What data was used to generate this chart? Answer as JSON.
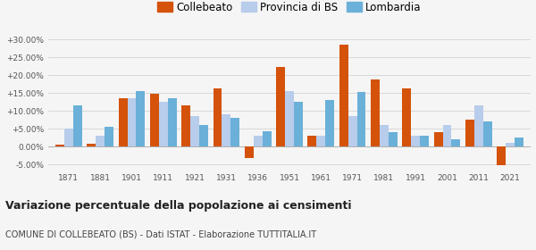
{
  "years": [
    1871,
    1881,
    1901,
    1911,
    1921,
    1931,
    1936,
    1951,
    1961,
    1971,
    1981,
    1991,
    2001,
    2011,
    2021
  ],
  "collebeato": [
    0.5,
    0.8,
    13.5,
    14.8,
    11.7,
    16.4,
    -3.2,
    22.3,
    3.0,
    28.5,
    18.8,
    16.3,
    4.2,
    7.5,
    -5.2
  ],
  "provincia_bs": [
    5.0,
    3.0,
    13.7,
    12.5,
    8.5,
    9.0,
    3.2,
    15.5,
    3.0,
    8.5,
    6.0,
    3.0,
    6.0,
    11.5,
    1.2
  ],
  "lombardia": [
    11.5,
    5.7,
    15.7,
    13.5,
    6.0,
    8.0,
    4.3,
    12.5,
    13.0,
    15.3,
    4.0,
    3.0,
    2.0,
    7.2,
    2.5
  ],
  "collebeato_color": "#d4520a",
  "provincia_color": "#b8cceb",
  "lombardia_color": "#6ab0d8",
  "title": "Variazione percentuale della popolazione ai censimenti",
  "subtitle": "COMUNE DI COLLEBEATO (BS) - Dati ISTAT - Elaborazione TUTTITALIA.IT",
  "ylim": [
    -6.5,
    32
  ],
  "yticks": [
    -5,
    0,
    5,
    10,
    15,
    20,
    25,
    30
  ],
  "ytick_labels": [
    "-5.00%",
    "0.00%",
    "+5.00%",
    "+10.00%",
    "+15.00%",
    "+20.00%",
    "+25.00%",
    "+30.00%"
  ],
  "bar_width": 0.28,
  "bg_color": "#f5f5f5",
  "grid_color": "#d8d8d8"
}
